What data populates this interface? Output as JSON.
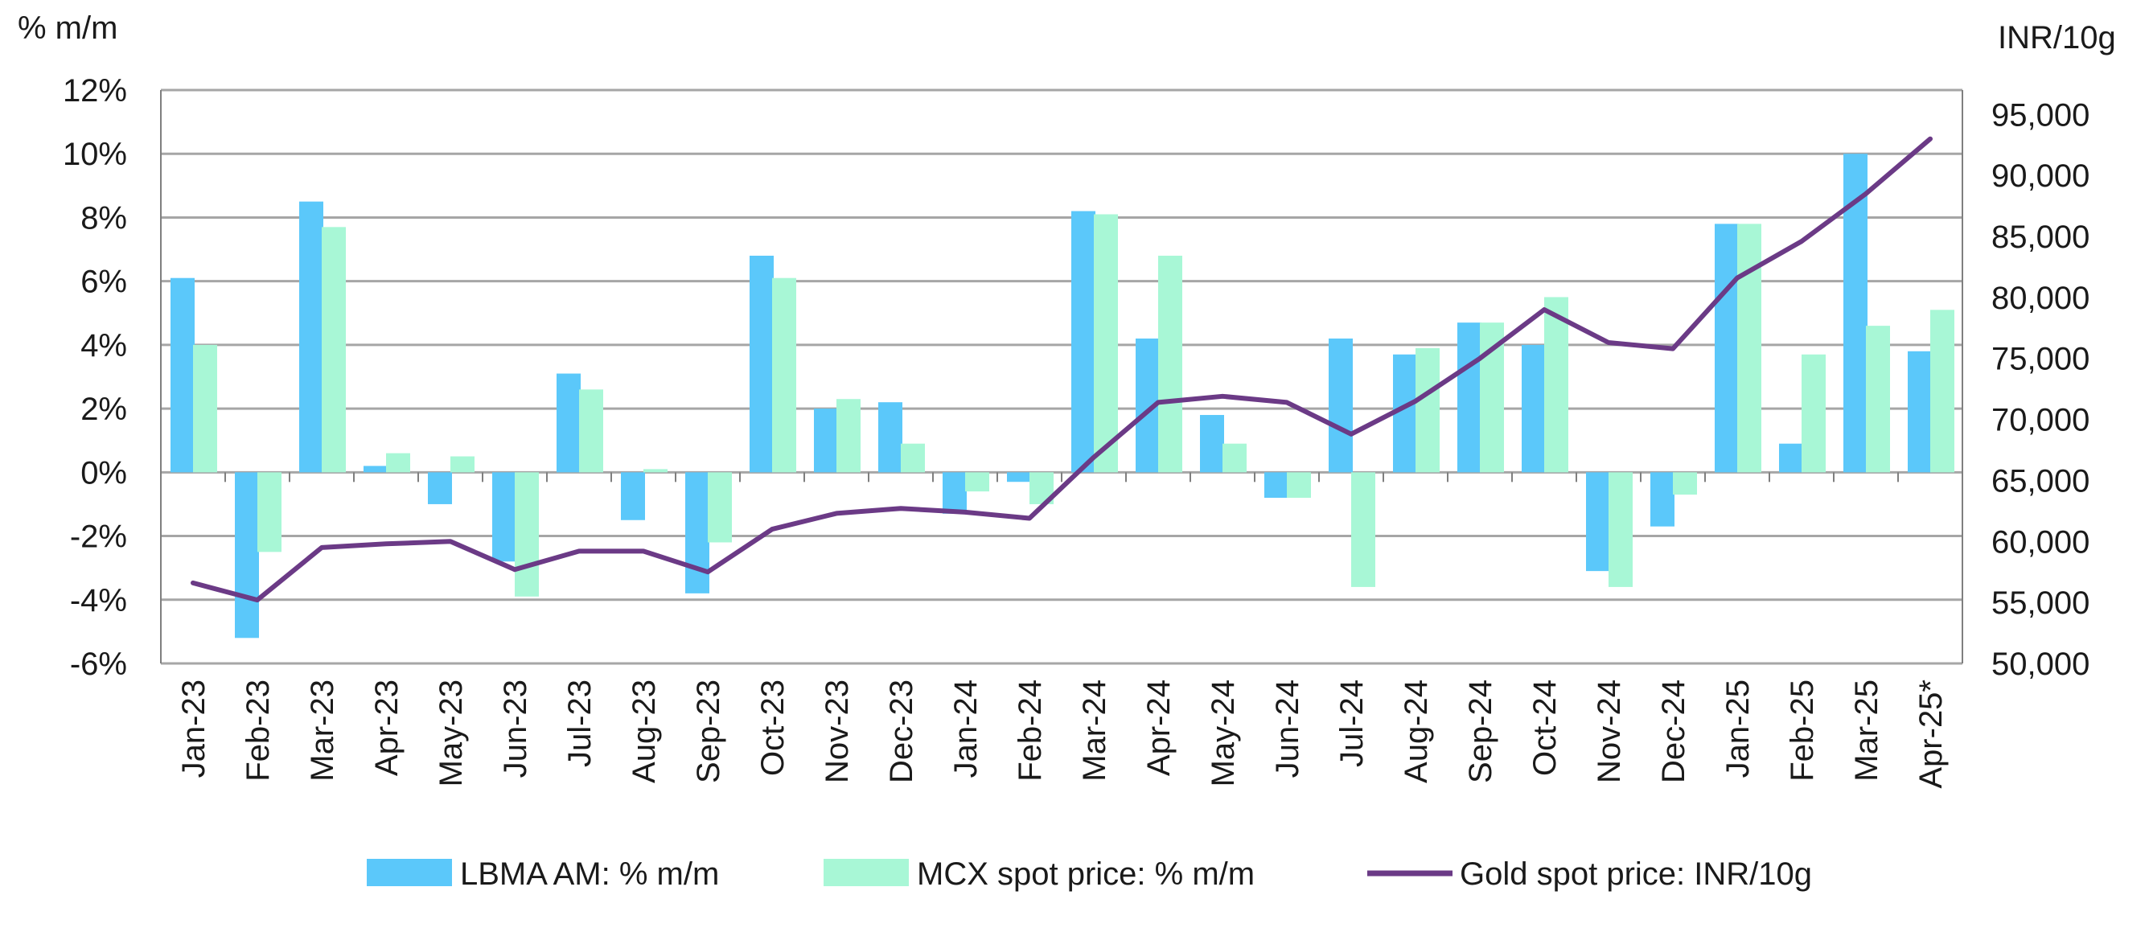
{
  "chart_data": {
    "type": "bar",
    "left_axis_unit": "% m/m",
    "right_axis_unit": "INR/10g",
    "categories": [
      "Jan-23",
      "Feb-23",
      "Mar-23",
      "Apr-23",
      "May-23",
      "Jun-23",
      "Jul-23",
      "Aug-23",
      "Sep-23",
      "Oct-23",
      "Nov-23",
      "Dec-23",
      "Jan-24",
      "Feb-24",
      "Mar-24",
      "Apr-24",
      "May-24",
      "Jun-24",
      "Jul-24",
      "Aug-24",
      "Sep-24",
      "Oct-24",
      "Nov-24",
      "Dec-24",
      "Jan-25",
      "Feb-25",
      "Mar-25",
      "Apr-25*"
    ],
    "left_ylim": [
      -6,
      12
    ],
    "left_yticks": [
      -6,
      -4,
      -2,
      0,
      2,
      4,
      6,
      8,
      10,
      12
    ],
    "left_tick_labels": [
      "-6%",
      "-4%",
      "-2%",
      "0%",
      "2%",
      "4%",
      "6%",
      "8%",
      "10%",
      "12%"
    ],
    "right_ylim": [
      50000,
      97000
    ],
    "right_yticks": [
      50000,
      55000,
      60000,
      65000,
      70000,
      75000,
      80000,
      85000,
      90000,
      95000
    ],
    "right_tick_labels": [
      "50,000",
      "55,000",
      "60,000",
      "65,000",
      "70,000",
      "75,000",
      "80,000",
      "85,000",
      "90,000",
      "95,000"
    ],
    "grid": true,
    "legend_position": "bottom",
    "series": [
      {
        "name": "LBMA AM: % m/m",
        "kind": "bar",
        "axis": "left",
        "color": "#5bc8fa",
        "values": [
          6.1,
          -5.2,
          8.5,
          0.2,
          -1.0,
          -2.8,
          3.1,
          -1.5,
          -3.8,
          6.8,
          2.0,
          2.2,
          -1.3,
          -0.3,
          8.2,
          4.2,
          1.8,
          -0.8,
          4.2,
          3.7,
          4.7,
          4.0,
          -3.1,
          -1.7,
          7.8,
          0.9,
          10.0,
          3.8
        ]
      },
      {
        "name": "MCX spot price: % m/m",
        "kind": "bar",
        "axis": "left",
        "color": "#a8f7d6",
        "values": [
          4.0,
          -2.5,
          7.7,
          0.6,
          0.5,
          -3.9,
          2.6,
          0.1,
          -2.2,
          6.1,
          2.3,
          0.9,
          -0.6,
          -1.0,
          8.1,
          6.8,
          0.9,
          -0.8,
          -3.6,
          3.9,
          4.7,
          5.5,
          -3.6,
          -0.7,
          7.8,
          3.7,
          4.6,
          5.1
        ]
      },
      {
        "name": "Gold spot price: INR/10g",
        "kind": "line",
        "axis": "right",
        "color": "#6b3a86",
        "values": [
          56600,
          55200,
          59500,
          59800,
          60000,
          57700,
          59200,
          59200,
          57500,
          61000,
          62300,
          62700,
          62400,
          61900,
          66900,
          71400,
          71900,
          71400,
          68800,
          71500,
          75000,
          79000,
          76300,
          75800,
          81600,
          84600,
          88500,
          93000
        ]
      }
    ]
  }
}
